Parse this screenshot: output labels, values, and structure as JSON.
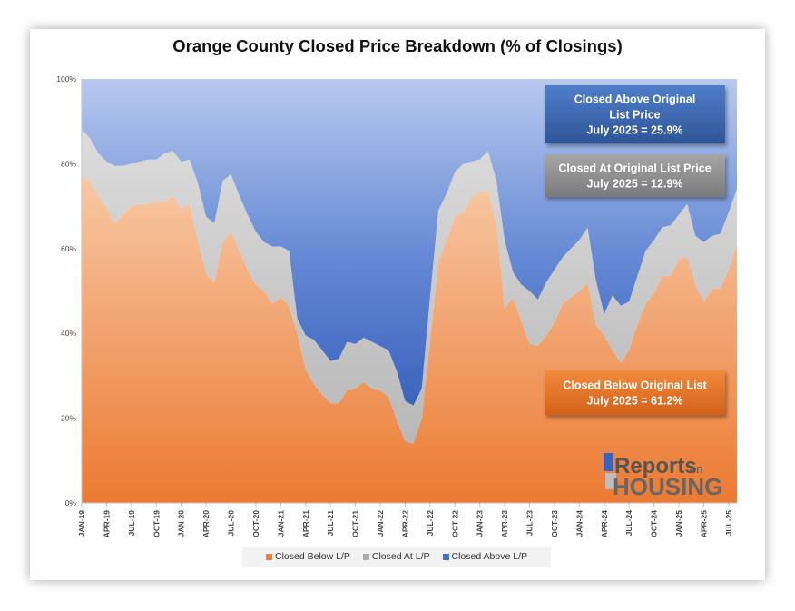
{
  "chart_data": {
    "type": "area",
    "stacked": true,
    "title": "Orange County Closed Price Breakdown (% of Closings)",
    "y_ticks": [
      "0%",
      "20%",
      "40%",
      "60%",
      "80%",
      "100%"
    ],
    "ylim": [
      0,
      100
    ],
    "x_tick_labels": [
      "JAN-19",
      "APR-19",
      "JUL-19",
      "OCT-19",
      "JAN-20",
      "APR-20",
      "JUL-20",
      "OCT-20",
      "JAN-21",
      "APR-21",
      "JUL-21",
      "OCT-21",
      "JAN-22",
      "APR-22",
      "JUL-22",
      "OCT-22",
      "JAN-23",
      "APR-23",
      "JUL-23",
      "OCT-23",
      "JAN-24",
      "APR-24",
      "JUL-24",
      "OCT-24",
      "JAN-25",
      "APR-25",
      "JUL-25"
    ],
    "x_start": "JAN-19",
    "x_end": "JUL-25",
    "series": [
      {
        "name": "Closed Below L/P",
        "color": "#ec7f3a",
        "values": [
          77.5,
          76.0,
          72.5,
          69.5,
          66.0,
          68.0,
          70.0,
          70.5,
          70.5,
          71.0,
          71.0,
          72.5,
          69.5,
          70.5,
          62.0,
          54.0,
          52.0,
          61.5,
          64.0,
          59.5,
          55.0,
          51.5,
          50.0,
          47.0,
          48.5,
          46.5,
          40.0,
          31.5,
          28.0,
          25.5,
          23.5,
          23.5,
          26.5,
          27.0,
          28.5,
          27.0,
          26.5,
          25.0,
          19.5,
          14.5,
          14.0,
          20.0,
          38.0,
          57.0,
          62.0,
          67.5,
          68.5,
          72.0,
          73.5,
          73.5,
          66.0,
          46.0,
          48.5,
          43.0,
          37.5,
          37.0,
          39.5,
          42.5,
          47.0,
          48.5,
          50.0,
          52.0,
          42.0,
          39.5,
          36.0,
          33.0,
          36.0,
          42.0,
          47.0,
          49.5,
          53.5,
          53.5,
          57.5,
          58.0,
          51.5,
          47.5,
          50.5,
          50.5,
          55.0,
          61.2
        ]
      },
      {
        "name": "Closed At L/P",
        "color": "#c8c8c8",
        "values": [
          10.5,
          10.0,
          10.0,
          11.0,
          13.5,
          11.5,
          10.0,
          10.0,
          10.5,
          10.0,
          11.5,
          10.5,
          11.0,
          10.5,
          13.5,
          13.5,
          14.0,
          14.5,
          13.5,
          13.0,
          13.0,
          12.5,
          11.5,
          13.5,
          12.0,
          13.0,
          3.5,
          8.0,
          10.5,
          10.5,
          10.0,
          10.5,
          11.5,
          10.5,
          10.5,
          11.0,
          10.5,
          11.0,
          11.5,
          9.5,
          9.0,
          7.0,
          10.5,
          12.0,
          11.0,
          10.5,
          11.5,
          8.5,
          7.5,
          9.5,
          10.0,
          16.0,
          6.0,
          8.5,
          12.5,
          11.0,
          12.5,
          12.5,
          11.0,
          11.5,
          12.0,
          13.0,
          10.5,
          5.0,
          13.0,
          13.5,
          11.5,
          11.5,
          12.5,
          12.5,
          11.5,
          12.0,
          10.5,
          12.5,
          11.5,
          14.0,
          12.5,
          13.0,
          13.5,
          12.9
        ]
      },
      {
        "name": "Closed Above L/P",
        "color": "#4472c4",
        "values": [
          12.0,
          14.0,
          17.5,
          19.5,
          20.5,
          20.5,
          20.0,
          19.5,
          19.0,
          19.0,
          17.5,
          17.0,
          19.5,
          19.0,
          24.5,
          32.5,
          34.0,
          24.0,
          22.5,
          27.5,
          32.0,
          36.0,
          38.5,
          39.5,
          39.5,
          40.5,
          56.5,
          60.5,
          61.5,
          64.0,
          66.5,
          66.0,
          62.0,
          62.5,
          61.0,
          62.0,
          63.0,
          64.0,
          69.0,
          76.0,
          77.0,
          73.0,
          51.5,
          31.0,
          27.0,
          22.0,
          20.0,
          19.5,
          19.0,
          17.0,
          24.0,
          38.0,
          45.5,
          48.5,
          50.0,
          52.0,
          48.0,
          45.0,
          42.0,
          40.0,
          38.0,
          35.0,
          47.5,
          55.5,
          51.0,
          53.5,
          52.5,
          46.5,
          40.5,
          38.0,
          35.0,
          34.5,
          32.0,
          29.5,
          37.0,
          38.5,
          37.0,
          36.5,
          31.5,
          25.9
        ]
      }
    ],
    "callouts": [
      {
        "lines": [
          "Closed Above Original",
          "List Price",
          "July 2025 = 25.9%"
        ],
        "color": "#3a64aa"
      },
      {
        "lines": [
          "Closed At Original List Price",
          "July 2025 = 12.9%"
        ],
        "color": "#8c8c8c"
      },
      {
        "lines": [
          "Closed Below Original List",
          "July 2025 = 61.2%"
        ],
        "color": "#e26f20"
      }
    ],
    "legend": [
      {
        "label": "Closed Below L/P",
        "color": "#ec7f3a"
      },
      {
        "label": "Closed At L/P",
        "color": "#a9a9a9"
      },
      {
        "label": "Closed Above L/P",
        "color": "#4472c4"
      }
    ],
    "legend_position": "bottom",
    "grid": false
  },
  "logo": {
    "word1": "Reports",
    "word_on": "on",
    "word2": "HOUSING"
  }
}
